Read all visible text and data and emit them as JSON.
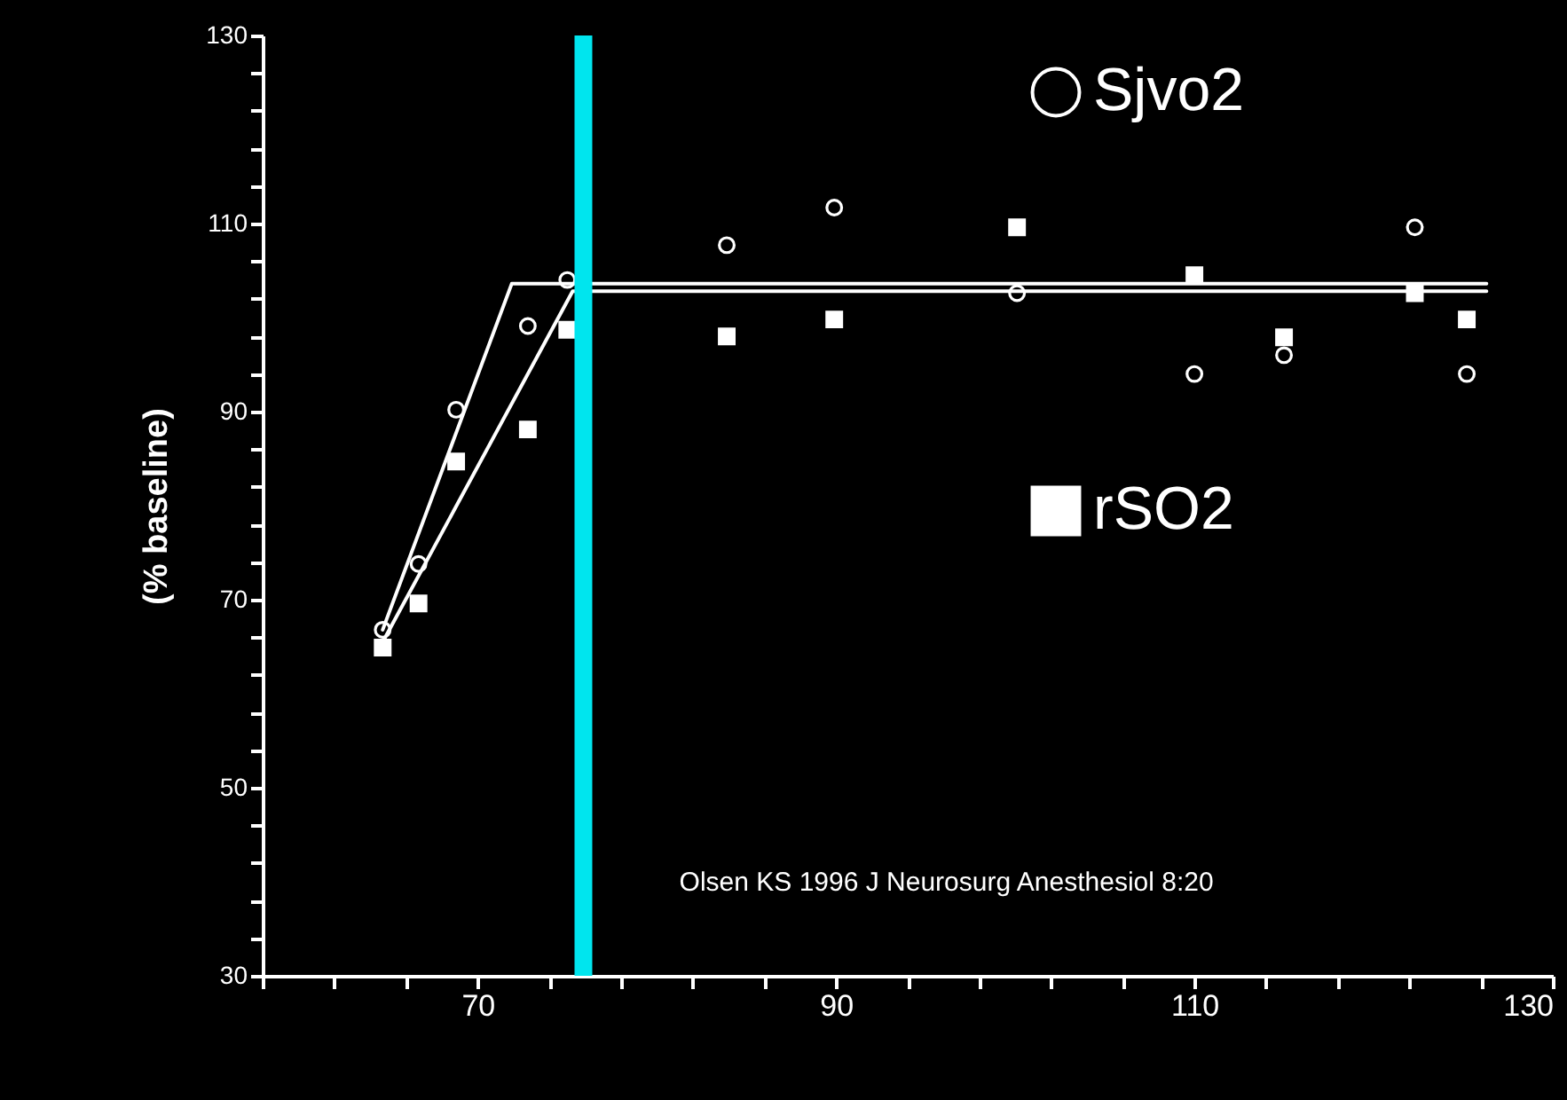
{
  "chart_data": {
    "type": "scatter",
    "ylabel": "(% baseline)",
    "legend": "top right",
    "marker": "circle",
    "xlim": [
      58,
      130
    ],
    "ylim": [
      30,
      130
    ],
    "xticks": [
      {
        "value": 58,
        "label": null
      },
      {
        "value": 62,
        "label": null
      },
      {
        "value": 66,
        "label": null
      },
      70,
      {
        "value": 74,
        "label": null
      },
      {
        "value": 78,
        "label": null
      },
      {
        "value": 82,
        "label": null
      },
      {
        "value": 86,
        "label": null
      },
      90,
      {
        "value": 94,
        "label": null
      },
      {
        "value": 98,
        "label": null
      },
      {
        "value": 102,
        "label": null
      },
      {
        "value": 106,
        "label": null
      },
      110,
      {
        "value": 114,
        "label": null
      },
      {
        "value": 118,
        "label": null
      },
      {
        "value": 122,
        "label": null
      },
      {
        "value": 126,
        "label": null
      },
      130
    ],
    "yticks": [
      30,
      {
        "value": 34,
        "label": null
      },
      {
        "value": 38,
        "label": null
      },
      {
        "value": 42,
        "label": null
      },
      {
        "value": 46,
        "label": null
      },
      50,
      {
        "value": 54,
        "label": null
      },
      {
        "value": 58,
        "label": null
      },
      {
        "value": 62,
        "label": null
      },
      {
        "value": 66,
        "label": null
      },
      70,
      {
        "value": 74,
        "label": null
      },
      {
        "value": 78,
        "label": null
      },
      {
        "value": 82,
        "label": null
      },
      {
        "value": 86,
        "label": null
      },
      90,
      {
        "value": 94,
        "label": null
      },
      {
        "value": 98,
        "label": null
      },
      {
        "value": 102,
        "label": null
      },
      {
        "value": 106,
        "label": null
      },
      110,
      {
        "value": 114,
        "label": null
      },
      {
        "value": 118,
        "label": null
      },
      {
        "value": 122,
        "label": null
      },
      {
        "value": 126,
        "label": null
      },
      130
    ],
    "series": [
      {
        "name": "Sjvo2",
        "type": "scatter",
        "color": "#ffffff",
        "x": [
          64.7,
          66.7,
          68.8,
          72.8,
          75,
          83.9,
          89.9,
          100.1,
          110,
          115,
          122.3,
          125.2
        ],
        "values": [
          66.8,
          73.8,
          90.2,
          99.1,
          104,
          107.7,
          111.7,
          102.6,
          94,
          96,
          109.6,
          94
        ]
      },
      {
        "name": "rSO2",
        "type": "scatter",
        "marker": "square",
        "color": "#ffffff",
        "x": [
          64.7,
          66.7,
          68.8,
          72.8,
          75,
          83.9,
          89.9,
          100.1,
          110,
          115,
          122.3,
          125.2
        ],
        "values": [
          64.9,
          69.6,
          84.7,
          88.1,
          98.7,
          98,
          99.8,
          109.6,
          104.5,
          97.9,
          102.6,
          99.8
        ]
      },
      {
        "type": "line",
        "marker": "none",
        "color": "#ffffff",
        "x": [
          64.7,
          71.9,
          126.3
        ],
        "values": [
          66.8,
          103.6,
          103.6
        ]
      },
      {
        "type": "line",
        "marker": "none",
        "color": "#ffffff",
        "x": [
          64.7,
          75.3,
          126.3
        ],
        "values": [
          65.5,
          102.8,
          102.8
        ]
      }
    ],
    "ref_lines": [
      {
        "axis": "x",
        "value": 75.9,
        "color": "#00e5ee"
      }
    ],
    "annotations": [
      "Olsen KS 1996 J Neurosurg Anesthesiol 8:20"
    ]
  }
}
